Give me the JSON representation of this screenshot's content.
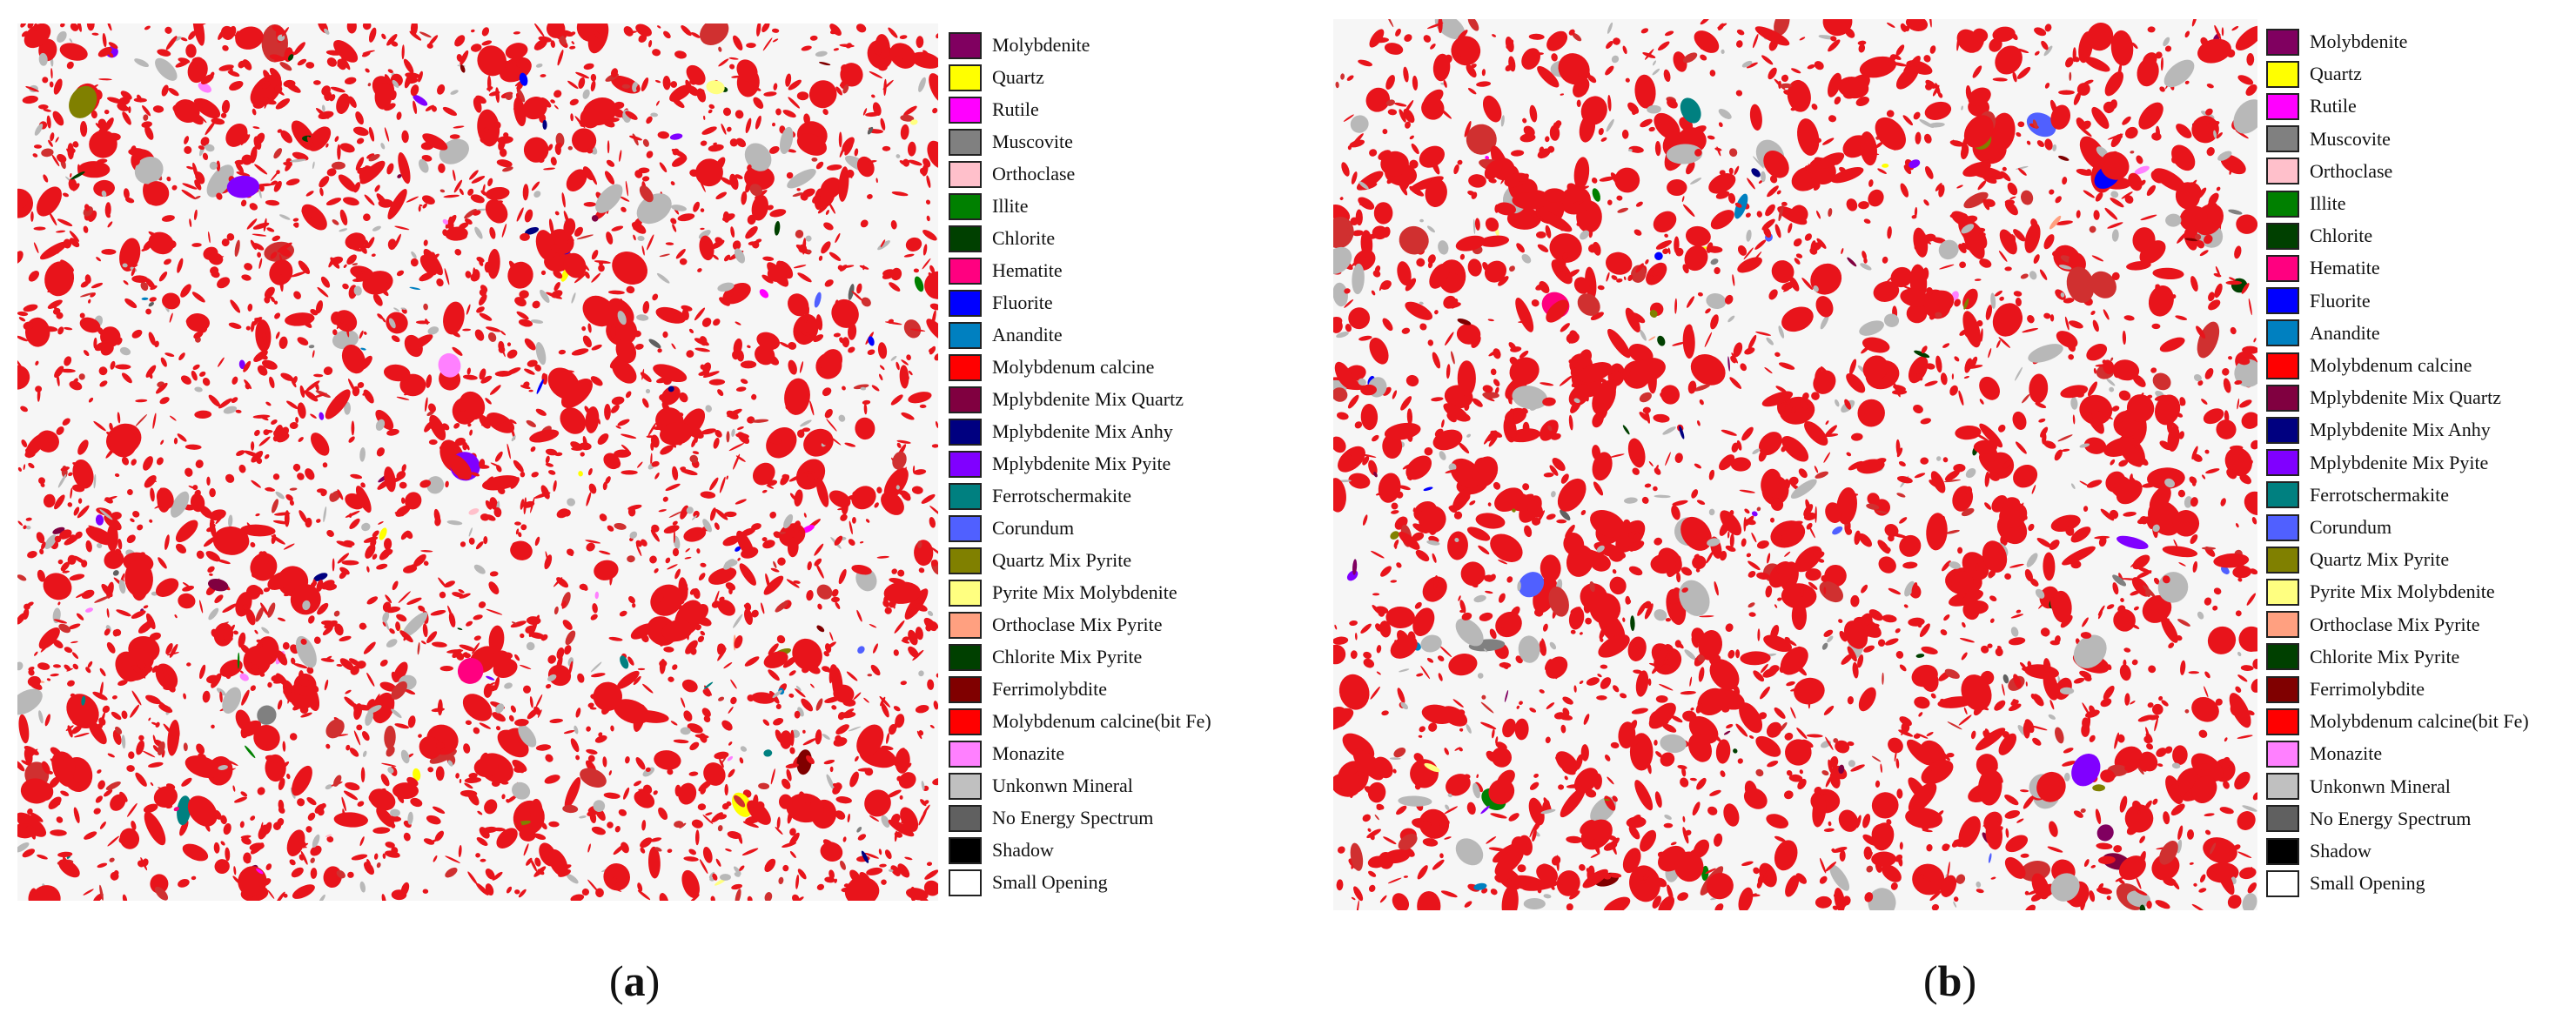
{
  "figure": {
    "panels": [
      {
        "id": "a",
        "caption_open": "(",
        "caption_letter": "a",
        "caption_close": ")",
        "dominant_phase_color": "#e8141b",
        "legend": [
          {
            "label": "Molybdenite",
            "color": "#800060"
          },
          {
            "label": "Quartz",
            "color": "#ffff00"
          },
          {
            "label": "Rutile",
            "color": "#ff00ff"
          },
          {
            "label": "Muscovite",
            "color": "#808080"
          },
          {
            "label": "Orthoclase",
            "color": "#ffc0cb"
          },
          {
            "label": "Illite",
            "color": "#008000"
          },
          {
            "label": "Chlorite",
            "color": "#004000"
          },
          {
            "label": "Hematite",
            "color": "#ff0080"
          },
          {
            "label": "Fluorite",
            "color": "#0000ff"
          },
          {
            "label": "Anandite",
            "color": "#0080c0"
          },
          {
            "label": "Molybdenum calcine",
            "color": "#ff0000"
          },
          {
            "label": "Mplybdenite Mix Quartz",
            "color": "#800040"
          },
          {
            "label": "Mplybdenite Mix Anhy",
            "color": "#000080"
          },
          {
            "label": "Mplybdenite Mix Pyite",
            "color": "#8000ff"
          },
          {
            "label": "Ferrotschermakite",
            "color": "#008080"
          },
          {
            "label": "Corundum",
            "color": "#5060ff"
          },
          {
            "label": "Quartz Mix Pyrite",
            "color": "#808000"
          },
          {
            "label": "Pyrite Mix Molybdenite",
            "color": "#ffff80"
          },
          {
            "label": "Orthoclase Mix Pyrite",
            "color": "#ffa080"
          },
          {
            "label": "Chlorite Mix Pyrite",
            "color": "#004000"
          },
          {
            "label": "Ferrimolybdite",
            "color": "#800000"
          },
          {
            "label": "Molybdenum calcine(bit Fe)",
            "color": "#ff0000"
          },
          {
            "label": "Monazite",
            "color": "#ff80ff"
          },
          {
            "label": "Unkonwn Mineral",
            "color": "#c0c0c0"
          },
          {
            "label": "No Energy Spectrum",
            "color": "#606060"
          },
          {
            "label": "Shadow",
            "color": "#000000"
          },
          {
            "label": "Small Opening",
            "color": "#ffffff"
          }
        ]
      },
      {
        "id": "b",
        "caption_open": "(",
        "caption_letter": "b",
        "caption_close": ")",
        "dominant_phase_color": "#e8141b",
        "legend": [
          {
            "label": "Molybdenite",
            "color": "#800060"
          },
          {
            "label": "Quartz",
            "color": "#ffff00"
          },
          {
            "label": "Rutile",
            "color": "#ff00ff"
          },
          {
            "label": "Muscovite",
            "color": "#808080"
          },
          {
            "label": "Orthoclase",
            "color": "#ffc0cb"
          },
          {
            "label": "Illite",
            "color": "#008000"
          },
          {
            "label": "Chlorite",
            "color": "#004000"
          },
          {
            "label": "Hematite",
            "color": "#ff0080"
          },
          {
            "label": "Fluorite",
            "color": "#0000ff"
          },
          {
            "label": "Anandite",
            "color": "#0080c0"
          },
          {
            "label": "Molybdenum calcine",
            "color": "#ff0000"
          },
          {
            "label": "Mplybdenite Mix Quartz",
            "color": "#800040"
          },
          {
            "label": "Mplybdenite Mix Anhy",
            "color": "#000080"
          },
          {
            "label": "Mplybdenite Mix Pyite",
            "color": "#8000ff"
          },
          {
            "label": "Ferrotschermakite",
            "color": "#008080"
          },
          {
            "label": "Corundum",
            "color": "#5060ff"
          },
          {
            "label": "Quartz Mix Pyrite",
            "color": "#808000"
          },
          {
            "label": "Pyrite Mix Molybdenite",
            "color": "#ffff80"
          },
          {
            "label": "Orthoclase Mix Pyrite",
            "color": "#ffa080"
          },
          {
            "label": "Chlorite Mix Pyrite",
            "color": "#004000"
          },
          {
            "label": "Ferrimolybdite",
            "color": "#800000"
          },
          {
            "label": "Molybdenum calcine(bit Fe)",
            "color": "#ff0000"
          },
          {
            "label": "Monazite",
            "color": "#ff80ff"
          },
          {
            "label": "Unkonwn Mineral",
            "color": "#c0c0c0"
          },
          {
            "label": "No Energy Spectrum",
            "color": "#606060"
          },
          {
            "label": "Shadow",
            "color": "#000000"
          },
          {
            "label": "Small Opening",
            "color": "#ffffff"
          }
        ]
      }
    ]
  }
}
